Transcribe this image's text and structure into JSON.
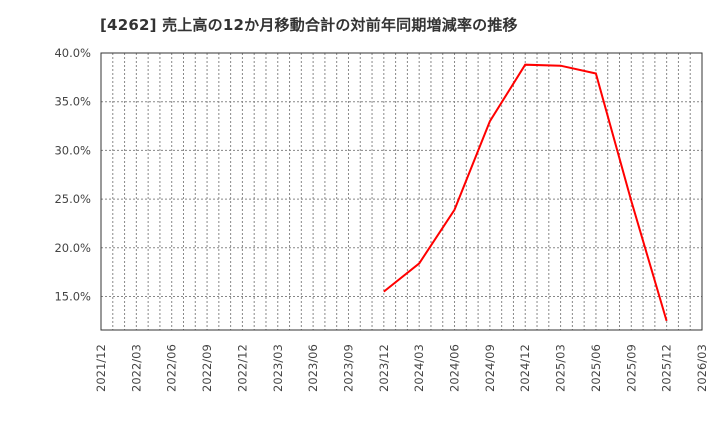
{
  "title": "[4262]  売上高の12か月移動合計の対前年同期増減率の推移",
  "chart_data": {
    "type": "line",
    "title": "[4262]  売上高の12か月移動合計の対前年同期増減率の推移",
    "xlabel": "",
    "ylabel": "",
    "x_ticks": [
      "2021/12",
      "2022/03",
      "2022/06",
      "2022/09",
      "2022/12",
      "2023/03",
      "2023/06",
      "2023/09",
      "2023/12",
      "2024/03",
      "2024/06",
      "2024/09",
      "2024/12",
      "2025/03",
      "2025/06",
      "2025/09",
      "2025/12",
      "2026/03"
    ],
    "y_ticks": [
      "15.0%",
      "20.0%",
      "25.0%",
      "30.0%",
      "35.0%",
      "40.0%"
    ],
    "ylim": [
      11.5,
      40.0
    ],
    "grid": true,
    "legend": null,
    "series": [
      {
        "name": "売上高12か月移動合計 対前年同期増減率",
        "color": "#ff0000",
        "x": [
          "2023/12",
          "2024/03",
          "2024/06",
          "2024/09",
          "2024/12",
          "2025/03",
          "2025/06",
          "2025/09",
          "2025/12"
        ],
        "values": [
          15.5,
          18.4,
          23.9,
          33.0,
          38.8,
          38.7,
          37.9,
          24.8,
          12.5
        ]
      }
    ]
  },
  "colors": {
    "line": "#ff0000",
    "grid": "#888888",
    "axis": "#333333",
    "text": "#444444"
  }
}
